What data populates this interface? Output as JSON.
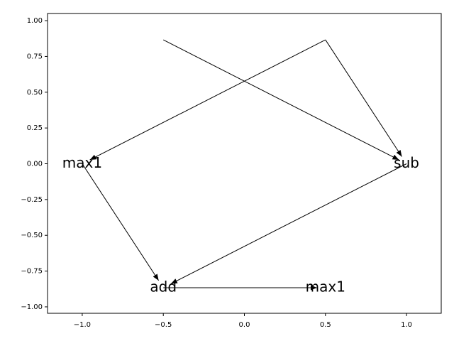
{
  "chart_data": {
    "type": "graph",
    "nodes": [
      {
        "label": null,
        "x": -0.5,
        "y": 0.866
      },
      {
        "label": null,
        "x": 0.5,
        "y": 0.866
      },
      {
        "label": "max1",
        "x": -1.0,
        "y": 0.0
      },
      {
        "label": "sub",
        "x": 1.0,
        "y": 0.0
      },
      {
        "label": "add",
        "x": -0.5,
        "y": -0.866
      },
      {
        "label": "max1",
        "x": 0.5,
        "y": -0.866
      }
    ],
    "edges": [
      [
        0,
        3
      ],
      [
        1,
        2
      ],
      [
        1,
        3
      ],
      [
        2,
        4
      ],
      [
        3,
        4
      ],
      [
        4,
        5
      ]
    ],
    "edge_color": "#000000",
    "xlim": [
      -1.214,
      1.214
    ],
    "ylim": [
      -1.045,
      1.05
    ],
    "xticks": [
      {
        "value": -1.0,
        "label": "−1.0"
      },
      {
        "value": -0.5,
        "label": "−0.5"
      },
      {
        "value": 0.0,
        "label": "0.0"
      },
      {
        "value": 0.5,
        "label": "0.5"
      },
      {
        "value": 1.0,
        "label": "1.0"
      }
    ],
    "yticks": [
      {
        "value": -1.0,
        "label": "−1.00"
      },
      {
        "value": -0.75,
        "label": "−0.75"
      },
      {
        "value": -0.5,
        "label": "−0.50"
      },
      {
        "value": -0.25,
        "label": "−0.25"
      },
      {
        "value": 0.0,
        "label": "0.00"
      },
      {
        "value": 0.25,
        "label": "0.25"
      },
      {
        "value": 0.5,
        "label": "0.50"
      },
      {
        "value": 0.75,
        "label": "0.75"
      },
      {
        "value": 1.0,
        "label": "1.00"
      }
    ]
  }
}
